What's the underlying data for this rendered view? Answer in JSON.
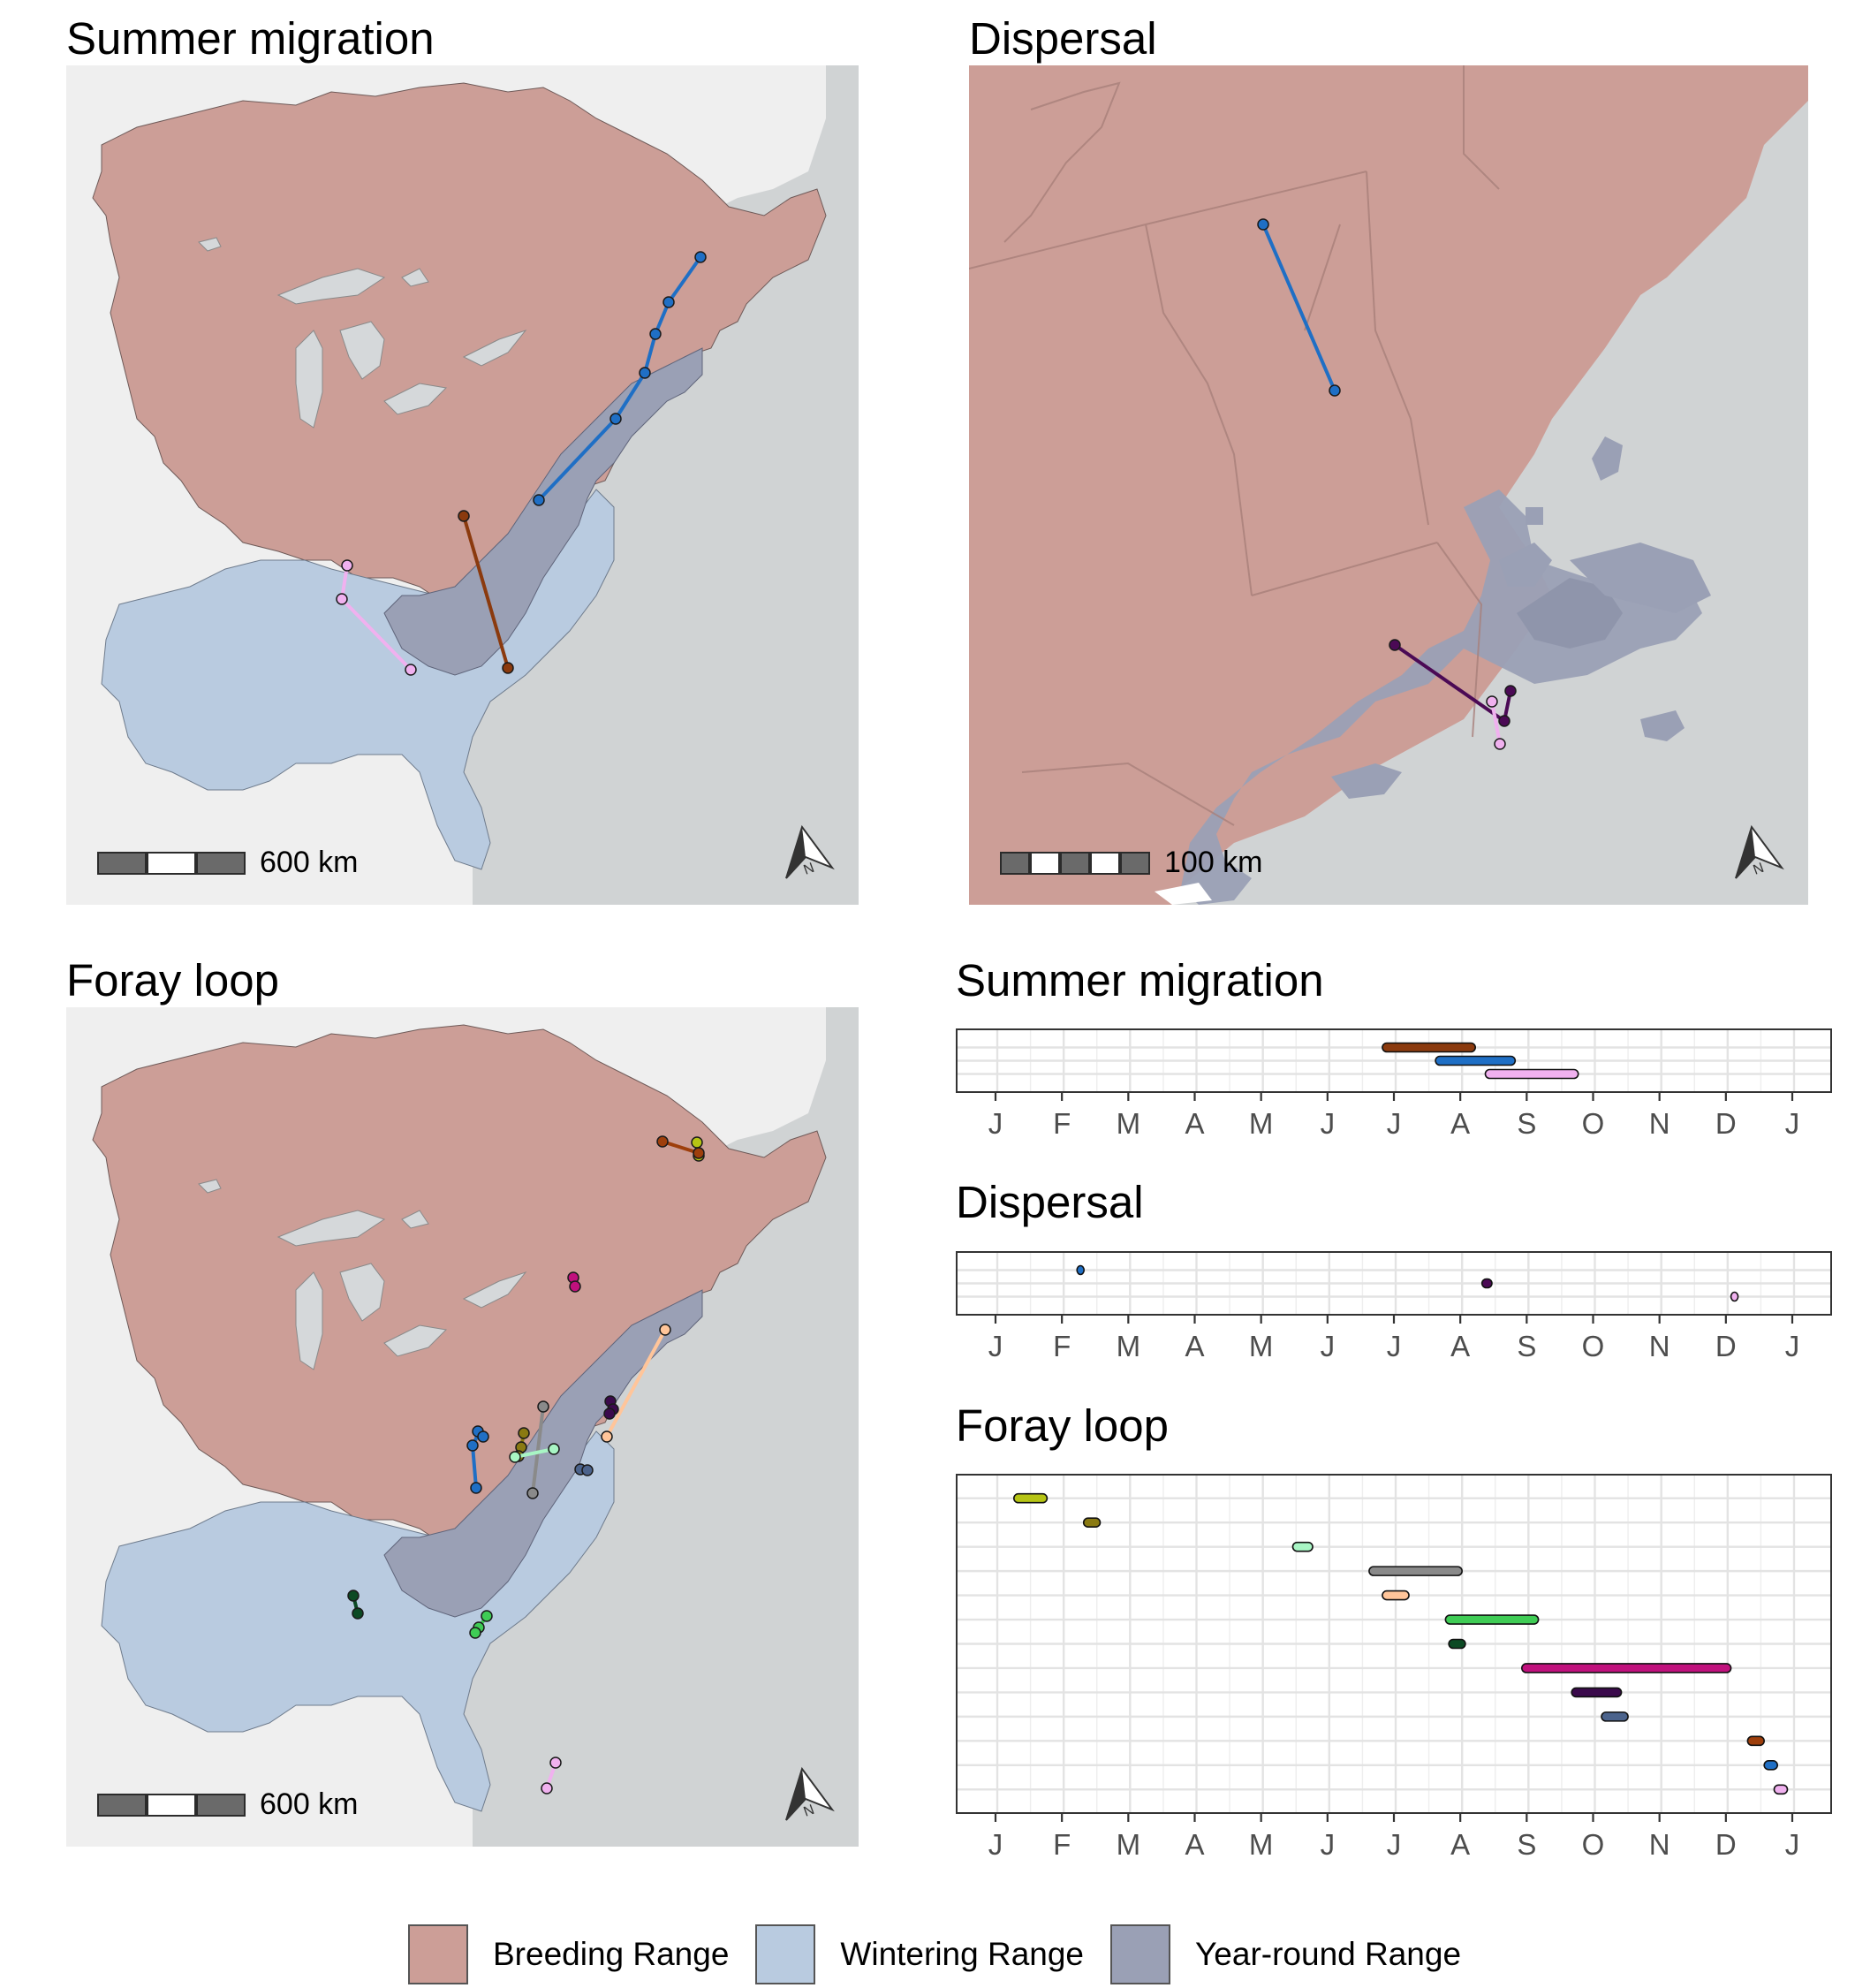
{
  "panels": {
    "map_summer": {
      "title": "Summer migration",
      "scale_label": "600 km"
    },
    "map_dispersal": {
      "title": "Dispersal",
      "scale_label": "100 km"
    },
    "map_foray": {
      "title": "Foray loop",
      "scale_label": "600 km"
    }
  },
  "legend": {
    "items": [
      {
        "label": "Breeding Range",
        "color": "#cc9e97"
      },
      {
        "label": "Wintering Range",
        "color": "#b9cbe0"
      },
      {
        "label": "Year-round Range",
        "color": "#9aa0b5"
      }
    ]
  },
  "map_colors": {
    "ocean": "#d0d3d4",
    "land": "#efefef",
    "breeding": "#cc9e97",
    "wintering": "#b9cbe0",
    "yearround": "#9aa0b5",
    "lake": "#d5d8da"
  },
  "chart_data": [
    {
      "type": "timeline",
      "title": "Summer migration",
      "x_ticks": [
        "J",
        "F",
        "M",
        "A",
        "M",
        "J",
        "J",
        "A",
        "S",
        "O",
        "N",
        "D",
        "J"
      ],
      "bars": [
        {
          "color": "#8b3a0e",
          "start": 5.8,
          "end": 7.2
        },
        {
          "color": "#1f6fc5",
          "start": 6.6,
          "end": 7.8
        },
        {
          "color": "#f0b1ef",
          "start": 7.35,
          "end": 8.75
        }
      ]
    },
    {
      "type": "timeline",
      "title": "Dispersal",
      "x_ticks": [
        "J",
        "F",
        "M",
        "A",
        "M",
        "J",
        "J",
        "A",
        "S",
        "O",
        "N",
        "D",
        "J"
      ],
      "bars": [
        {
          "color": "#1f6fc5",
          "start": 1.2,
          "end": 1.3
        },
        {
          "color": "#4b0a55",
          "start": 7.3,
          "end": 7.45
        },
        {
          "color": "#f0b1ef",
          "start": 11.05,
          "end": 11.12
        }
      ]
    },
    {
      "type": "timeline",
      "title": "Foray loop",
      "x_ticks": [
        "J",
        "F",
        "M",
        "A",
        "M",
        "J",
        "J",
        "A",
        "S",
        "O",
        "N",
        "D",
        "J"
      ],
      "bars": [
        {
          "color": "#b6c414",
          "start": 0.25,
          "end": 0.75
        },
        {
          "color": "#8a7a12",
          "start": 1.3,
          "end": 1.55
        },
        {
          "color": "#a8f5c4",
          "start": 4.45,
          "end": 4.75
        },
        {
          "color": "#8a8a8a",
          "start": 5.6,
          "end": 7.0
        },
        {
          "color": "#ffc59a",
          "start": 5.8,
          "end": 6.2
        },
        {
          "color": "#3fcc55",
          "start": 6.75,
          "end": 8.15
        },
        {
          "color": "#0c4a24",
          "start": 6.8,
          "end": 7.05
        },
        {
          "color": "#c0117d",
          "start": 7.9,
          "end": 11.05
        },
        {
          "color": "#3b0a4c",
          "start": 8.65,
          "end": 9.4
        },
        {
          "color": "#4b638c",
          "start": 9.1,
          "end": 9.5
        },
        {
          "color": "#9e3f0c",
          "start": 11.3,
          "end": 11.55
        },
        {
          "color": "#1f6fc5",
          "start": 11.55,
          "end": 11.75
        },
        {
          "color": "#f0b1ef",
          "start": 11.7,
          "end": 11.9
        }
      ]
    }
  ]
}
